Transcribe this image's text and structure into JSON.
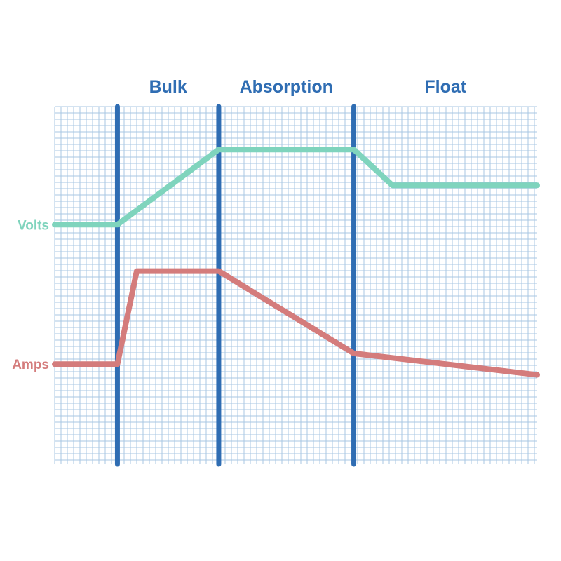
{
  "chart_data": {
    "type": "line",
    "title": "",
    "xlabel": "",
    "ylabel": "",
    "grid": true,
    "xlim": [
      0,
      100
    ],
    "ylim": [
      0,
      100
    ],
    "phases": [
      {
        "label": "Bulk",
        "start": 13,
        "end": 34
      },
      {
        "label": "Absorption",
        "start": 34,
        "end": 62
      },
      {
        "label": "Float",
        "start": 62,
        "end": 100
      }
    ],
    "series": [
      {
        "name": "Volts",
        "color": "#7fd4bd",
        "points": [
          [
            0,
            67
          ],
          [
            13,
            67
          ],
          [
            34,
            88
          ],
          [
            62,
            88
          ],
          [
            70,
            78
          ],
          [
            100,
            78
          ]
        ]
      },
      {
        "name": "Amps",
        "color": "#d47c7c",
        "points": [
          [
            0,
            28
          ],
          [
            13,
            28
          ],
          [
            17,
            54
          ],
          [
            34,
            54
          ],
          [
            62,
            31
          ],
          [
            100,
            25
          ]
        ]
      }
    ],
    "colors": {
      "phase_line": "#2f6db3",
      "phase_label": "#2f6db3",
      "grid": "#a9c7e3"
    }
  }
}
